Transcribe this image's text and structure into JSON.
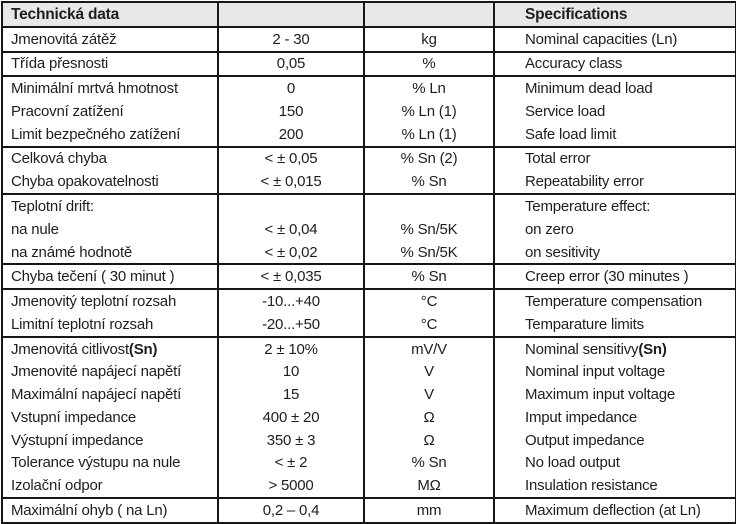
{
  "table": {
    "header": {
      "czech": "Technická data",
      "value": "",
      "unit": "",
      "english": "Specifications"
    },
    "rows": [
      {
        "czech": "Jmenovitá zátěž",
        "value": "2 - 30",
        "unit": "kg",
        "english": "Nominal capacities (Ln)",
        "group_start": false
      },
      {
        "czech": "Třída přesnosti",
        "value": "0,05",
        "unit": "%",
        "english": "Accuracy class",
        "group_start": true
      },
      {
        "czech": "Minimální mrtvá hmotnost",
        "value": "0",
        "unit": "% Ln",
        "english": "Minimum dead load",
        "group_start": true
      },
      {
        "czech": "Pracovní zatížení",
        "value": "150",
        "unit": "% Ln (1)",
        "english": "Service load",
        "group_start": false
      },
      {
        "czech": "Limit bezpečného zatížení",
        "value": "200",
        "unit": "% Ln (1)",
        "english": "Safe load limit",
        "group_start": false
      },
      {
        "czech": "Celková chyba",
        "value": "< ± 0,05",
        "unit": "% Sn (2)",
        "english": "Total error",
        "group_start": true
      },
      {
        "czech": "Chyba opakovatelnosti",
        "value": "< ± 0,015",
        "unit": "% Sn",
        "english": "Repeatability error",
        "group_start": false
      },
      {
        "czech": "Teplotní drift:",
        "value": "",
        "unit": "",
        "english": "Temperature effect:",
        "group_start": true
      },
      {
        "czech": "na nule",
        "value": "< ± 0,04",
        "unit": "% Sn/5K",
        "english": "on zero",
        "group_start": false
      },
      {
        "czech": "na známé hodnotě",
        "value": "< ± 0,02",
        "unit": "% Sn/5K",
        "english": "on sesitivity",
        "group_start": false
      },
      {
        "czech": "Chyba tečení ( 30 minut )",
        "value": "< ± 0,035",
        "unit": "% Sn",
        "english": "Creep error (30 minutes )",
        "group_start": true
      },
      {
        "czech": "Jmenovitý teplotní rozsah",
        "value": "-10...+40",
        "unit": "°C",
        "english": "Temperature compensation",
        "group_start": true
      },
      {
        "czech": "Limitní teplotní rozsah",
        "value": "-20...+50",
        "unit": "°C",
        "english": "Temparature limits",
        "group_start": false
      },
      {
        "czech": "Jmenovitá citlivost ",
        "czech_bold": "(Sn)",
        "value": "2 ± 10%",
        "unit": "mV/V",
        "english": "Nominal sensitivy ",
        "english_bold": "(Sn)",
        "group_start": true
      },
      {
        "czech": "Jmenovité napájecí napětí",
        "value": "10",
        "unit": "V",
        "english": "Nominal input voltage",
        "group_start": false
      },
      {
        "czech": "Maximální napájecí napětí",
        "value": "15",
        "unit": "V",
        "english": "Maximum input voltage",
        "group_start": false
      },
      {
        "czech": "Vstupní impedance",
        "value": "400 ± 20",
        "unit": "Ω",
        "english": "Imput impedance",
        "group_start": false
      },
      {
        "czech": "Výstupní impedance",
        "value": "350 ± 3",
        "unit": "Ω",
        "english": "Output impedance",
        "group_start": false
      },
      {
        "czech": "Tolerance výstupu na nule",
        "value": "< ± 2",
        "unit": "% Sn",
        "english": "No load output",
        "group_start": false
      },
      {
        "czech": "Izolační odpor",
        "value": "> 5000",
        "unit": "MΩ",
        "english": "Insulation resistance",
        "group_start": false
      },
      {
        "czech": "Maximální ohyb ( na Ln)",
        "value": "0,2 – 0,4",
        "unit": "mm",
        "english": "Maximum deflection (at Ln)",
        "group_start": true
      }
    ]
  },
  "colors": {
    "header_bg": "#e8e8e8",
    "border": "#161616",
    "text": "#1e1e20"
  }
}
